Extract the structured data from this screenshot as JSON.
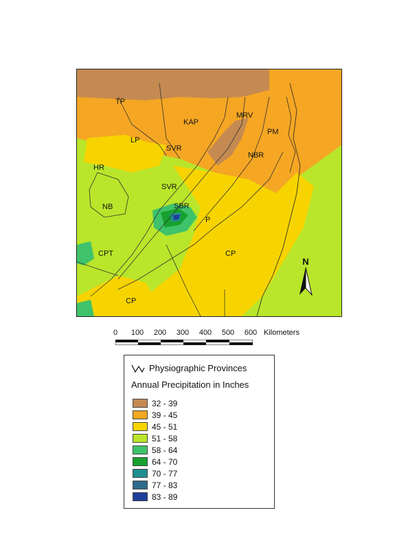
{
  "map": {
    "province_labels": [
      "TP",
      "KAP",
      "MRV",
      "PM",
      "LP",
      "SVR",
      "NBR",
      "HR",
      "SVR",
      "NB",
      "SBR",
      "P",
      "CPT",
      "CP",
      "CP"
    ],
    "north_label": "N"
  },
  "scale": {
    "ticks": [
      "0",
      "100",
      "200",
      "300",
      "400",
      "500",
      "600"
    ],
    "unit": "Kilometers"
  },
  "legend": {
    "boundary_label": "Physiographic Provinces",
    "title": "Annual Precipitation in Inches",
    "classes": [
      {
        "label": "32 - 39",
        "color": "#c48a52"
      },
      {
        "label": "39 - 45",
        "color": "#f5a623"
      },
      {
        "label": "45 - 51",
        "color": "#f7d400"
      },
      {
        "label": "51 - 58",
        "color": "#b9e52a"
      },
      {
        "label": "58 - 64",
        "color": "#3ec36a"
      },
      {
        "label": "64 - 70",
        "color": "#17a12e"
      },
      {
        "label": "70 - 77",
        "color": "#1f8f8f"
      },
      {
        "label": "77 - 83",
        "color": "#2e6a8a"
      },
      {
        "label": "83 - 89",
        "color": "#213f9a"
      }
    ]
  }
}
